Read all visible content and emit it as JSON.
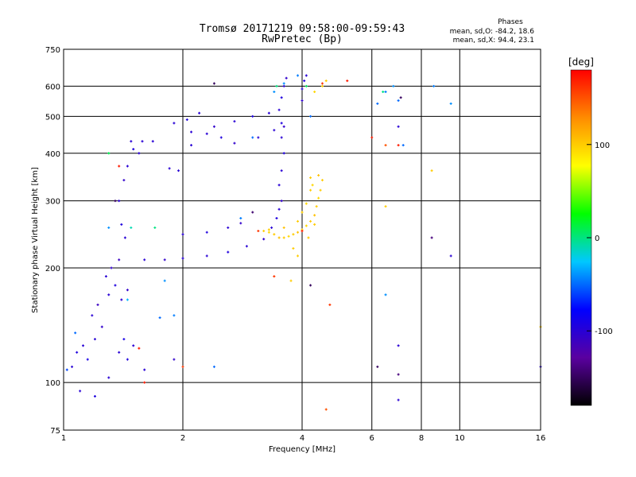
{
  "chart_data": {
    "type": "scatter",
    "title": "Tromsø 20171219 09:58:00-09:59:43",
    "subtitle": "RwPretec (Bp)",
    "xlabel": "Frequency [MHz]",
    "ylabel": "Stationary phase Virtual Height [km]",
    "x_scale": "log",
    "y_scale": "log",
    "xlim": [
      1,
      16
    ],
    "ylim": [
      75,
      750
    ],
    "x_ticks": [
      1,
      2,
      4,
      6,
      8,
      10,
      16
    ],
    "y_ticks": [
      75,
      100,
      200,
      300,
      400,
      500,
      600,
      750
    ],
    "grid": true,
    "stats": {
      "heading": "Phases",
      "line_o": "mean, sd,O: -84.2, 18.6",
      "line_x": "mean, sd,X:  94.4, 23.1"
    },
    "colorbar": {
      "label": "[deg]",
      "range": [
        -180,
        180
      ],
      "ticks": [
        100,
        0,
        -100
      ],
      "colors": [
        "#000000",
        "#5a00a0",
        "#0000ff",
        "#00c8ff",
        "#00ff00",
        "#ffff00",
        "#ff8c00",
        "#ff0000"
      ]
    },
    "series": [
      {
        "points": [
          [
            1.05,
            110,
            -100
          ],
          [
            1.08,
            120,
            -95
          ],
          [
            1.12,
            125,
            -100
          ],
          [
            1.15,
            115,
            -90
          ],
          [
            1.2,
            130,
            -100
          ],
          [
            1.25,
            140,
            -105
          ],
          [
            1.18,
            150,
            -100
          ],
          [
            1.22,
            160,
            -110
          ],
          [
            1.3,
            170,
            -100
          ],
          [
            1.35,
            180,
            -95
          ],
          [
            1.28,
            190,
            -100
          ],
          [
            1.32,
            200,
            -105
          ],
          [
            1.38,
            120,
            -100
          ],
          [
            1.42,
            130,
            -90
          ],
          [
            1.45,
            115,
            -95
          ],
          [
            1.5,
            125,
            -100
          ],
          [
            1.4,
            165,
            -100
          ],
          [
            1.45,
            175,
            -105
          ],
          [
            1.38,
            210,
            -110
          ],
          [
            1.43,
            240,
            -100
          ],
          [
            1.4,
            260,
            -95
          ],
          [
            1.38,
            300,
            -100
          ],
          [
            1.42,
            340,
            -105
          ],
          [
            1.45,
            370,
            -100
          ],
          [
            1.5,
            410,
            -95
          ],
          [
            1.48,
            430,
            -100
          ],
          [
            1.58,
            430,
            -100
          ],
          [
            1.68,
            430,
            -100
          ],
          [
            1.6,
            210,
            -100
          ],
          [
            1.8,
            210,
            -105
          ],
          [
            2.0,
            212,
            -100
          ],
          [
            2.3,
            215,
            -100
          ],
          [
            2.6,
            220,
            -95
          ],
          [
            2.9,
            228,
            -100
          ],
          [
            3.2,
            238,
            -105
          ],
          [
            3.35,
            255,
            -100
          ],
          [
            3.45,
            270,
            -95
          ],
          [
            3.5,
            285,
            -100
          ],
          [
            3.55,
            300,
            -105
          ],
          [
            3.5,
            330,
            -100
          ],
          [
            3.55,
            360,
            -100
          ],
          [
            3.6,
            400,
            -95
          ],
          [
            3.55,
            440,
            -100
          ],
          [
            3.6,
            470,
            -105
          ],
          [
            3.5,
            520,
            -100
          ],
          [
            3.55,
            560,
            -95
          ],
          [
            3.6,
            600,
            -100
          ],
          [
            3.65,
            630,
            -105
          ],
          [
            3.3,
            510,
            -100
          ],
          [
            3.0,
            500,
            -95
          ],
          [
            2.7,
            485,
            -100
          ],
          [
            2.4,
            470,
            -105
          ],
          [
            2.1,
            455,
            -100
          ],
          [
            1.9,
            480,
            -100
          ],
          [
            2.05,
            490,
            -95
          ],
          [
            2.3,
            450,
            -100
          ],
          [
            2.7,
            425,
            -105
          ],
          [
            3.1,
            440,
            -100
          ],
          [
            3.4,
            460,
            -100
          ],
          [
            3.55,
            480,
            -95
          ],
          [
            2.0,
            245,
            -100
          ],
          [
            2.3,
            248,
            -95
          ],
          [
            2.6,
            255,
            -100
          ],
          [
            2.8,
            262,
            -105
          ],
          [
            1.85,
            365,
            -100
          ],
          [
            1.95,
            360,
            -100
          ],
          [
            4.0,
            590,
            -100
          ],
          [
            4.05,
            620,
            -95
          ],
          [
            4.1,
            640,
            -100
          ],
          [
            4.0,
            550,
            -105
          ],
          [
            2.1,
            420,
            -100
          ],
          [
            2.5,
            440,
            -95
          ],
          [
            1.1,
            95,
            -100
          ],
          [
            1.2,
            92,
            -95
          ],
          [
            1.3,
            103,
            -100
          ],
          [
            1.6,
            108,
            -100
          ],
          [
            1.9,
            115,
            -105
          ],
          [
            7.0,
            470,
            -100
          ],
          [
            7.0,
            125,
            -100
          ],
          [
            7.0,
            90,
            -100
          ],
          [
            9.5,
            215,
            -100
          ],
          [
            16,
            110,
            -100
          ],
          [
            2.2,
            510,
            -100
          ],
          [
            1.55,
            400,
            -100
          ]
        ]
      },
      {
        "points": [
          [
            3.2,
            250,
            100
          ],
          [
            3.3,
            248,
            95
          ],
          [
            3.4,
            245,
            100
          ],
          [
            3.5,
            240,
            105
          ],
          [
            3.6,
            240,
            100
          ],
          [
            3.7,
            242,
            95
          ],
          [
            3.8,
            245,
            100
          ],
          [
            3.9,
            248,
            105
          ],
          [
            4.0,
            252,
            100
          ],
          [
            4.1,
            258,
            95
          ],
          [
            4.2,
            265,
            100
          ],
          [
            4.3,
            275,
            105
          ],
          [
            4.35,
            290,
            100
          ],
          [
            4.4,
            305,
            95
          ],
          [
            4.45,
            320,
            100
          ],
          [
            4.5,
            340,
            100
          ],
          [
            4.4,
            350,
            105
          ],
          [
            4.2,
            320,
            100
          ],
          [
            4.1,
            295,
            95
          ],
          [
            4.0,
            280,
            100
          ],
          [
            3.9,
            265,
            100
          ],
          [
            3.6,
            255,
            105
          ],
          [
            3.3,
            252,
            100
          ],
          [
            4.25,
            330,
            95
          ],
          [
            4.3,
            260,
            100
          ],
          [
            4.15,
            240,
            100
          ],
          [
            3.8,
            225,
            100
          ],
          [
            3.75,
            185,
            100
          ],
          [
            4.5,
            600,
            100
          ],
          [
            4.3,
            580,
            95
          ],
          [
            3.9,
            215,
            100
          ],
          [
            4.2,
            345,
            100
          ],
          [
            8.5,
            360,
            100
          ],
          [
            6.5,
            290,
            100
          ],
          [
            16,
            140,
            100
          ],
          [
            4.6,
            620,
            100
          ]
        ]
      },
      {
        "points": [
          [
            1.02,
            108,
            -60
          ],
          [
            1.07,
            135,
            -50
          ],
          [
            1.3,
            255,
            -40
          ],
          [
            1.45,
            165,
            -30
          ],
          [
            1.75,
            148,
            -50
          ],
          [
            1.8,
            185,
            -40
          ],
          [
            2.8,
            270,
            -45
          ],
          [
            3.0,
            440,
            -50
          ],
          [
            3.4,
            580,
            -40
          ],
          [
            3.9,
            640,
            -45
          ],
          [
            6.2,
            540,
            -50
          ],
          [
            6.5,
            170,
            -40
          ],
          [
            6.5,
            580,
            -45
          ],
          [
            6.8,
            600,
            -40
          ],
          [
            7.2,
            420,
            -50
          ],
          [
            7.0,
            550,
            -50
          ],
          [
            8.6,
            600,
            -45
          ],
          [
            9.5,
            540,
            -40
          ],
          [
            2.4,
            110,
            -50
          ],
          [
            1.9,
            150,
            -45
          ],
          [
            3.6,
            610,
            -40
          ],
          [
            4.2,
            500,
            -50
          ]
        ]
      },
      {
        "points": [
          [
            1.55,
            123,
            170
          ],
          [
            1.6,
            100,
            170
          ],
          [
            2.0,
            110,
            160
          ],
          [
            1.38,
            370,
            170
          ],
          [
            3.1,
            250,
            160
          ],
          [
            4.0,
            250,
            170
          ],
          [
            4.7,
            160,
            160
          ],
          [
            4.6,
            85,
            150
          ],
          [
            6.0,
            440,
            170
          ],
          [
            6.5,
            420,
            150
          ],
          [
            7.0,
            420,
            170
          ],
          [
            3.4,
            190,
            160
          ],
          [
            5.2,
            620,
            170
          ],
          [
            4.5,
            610,
            160
          ]
        ]
      },
      {
        "points": [
          [
            1.7,
            255,
            0
          ],
          [
            1.3,
            400,
            10
          ],
          [
            1.48,
            255,
            -10
          ],
          [
            3.45,
            600,
            0
          ],
          [
            4.1,
            600,
            5
          ],
          [
            6.4,
            580,
            0
          ]
        ]
      },
      {
        "points": [
          [
            6.2,
            110,
            -150
          ],
          [
            7.0,
            105,
            -140
          ],
          [
            2.4,
            610,
            -150
          ],
          [
            3.0,
            280,
            -145
          ],
          [
            4.2,
            180,
            -150
          ],
          [
            8.5,
            240,
            -140
          ],
          [
            1.35,
            300,
            -150
          ],
          [
            7.1,
            560,
            -150
          ]
        ]
      }
    ]
  }
}
